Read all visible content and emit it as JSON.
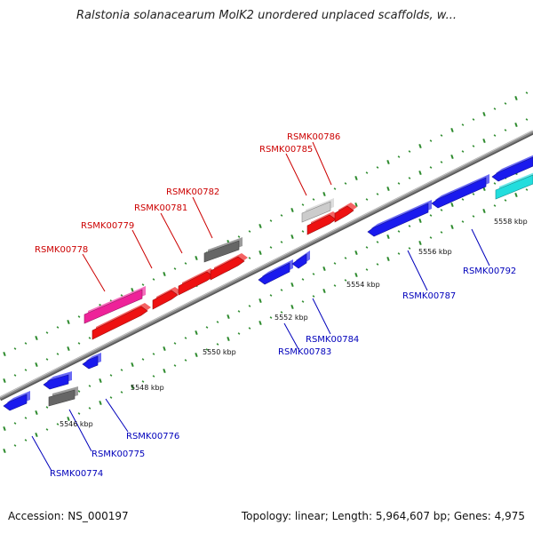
{
  "title": "Ralstonia solanacearum MolK2 unordered unplaced scaffolds, w...",
  "footer": {
    "accession": "Accession: NS_000197",
    "stats": "Topology: linear; Length: 5,964,607 bp; Genes: 4,975"
  },
  "colors": {
    "backbone": "#8a8a8a",
    "tick_dot": "#2e8b2e",
    "forward_label": "#cc0000",
    "reverse_label": "#0000bb",
    "blue": "#1a1aee",
    "red": "#ee1111",
    "magenta": "#ee2299",
    "gray": "#666666",
    "lightgray": "#cccccc",
    "cyan": "#22dddd"
  },
  "positions": [
    {
      "label": "5546 kbp"
    },
    {
      "label": "5548 kbp"
    },
    {
      "label": "5550 kbp"
    },
    {
      "label": "5552 kbp"
    },
    {
      "label": "5554 kbp"
    },
    {
      "label": "5556 kbp"
    },
    {
      "label": "5558 kbp"
    }
  ],
  "genes": [
    {
      "id": "g1",
      "color": "blue"
    },
    {
      "id": "g2",
      "color": "blue"
    },
    {
      "id": "g3",
      "color": "gray"
    },
    {
      "id": "g4",
      "color": "blue"
    },
    {
      "id": "g5",
      "color": "magenta"
    },
    {
      "id": "g6",
      "color": "red"
    },
    {
      "id": "g7",
      "color": "red"
    },
    {
      "id": "g8",
      "color": "red"
    },
    {
      "id": "g9",
      "color": "red"
    },
    {
      "id": "g10",
      "color": "gray"
    },
    {
      "id": "g11",
      "color": "blue"
    },
    {
      "id": "g12",
      "color": "blue"
    },
    {
      "id": "g13",
      "color": "lightgray"
    },
    {
      "id": "g14",
      "color": "red"
    },
    {
      "id": "g15",
      "color": "red"
    },
    {
      "id": "g16",
      "color": "blue"
    },
    {
      "id": "g17",
      "color": "blue"
    },
    {
      "id": "g18",
      "color": "blue"
    },
    {
      "id": "g19",
      "color": "cyan"
    }
  ],
  "labels": [
    {
      "text": "RSMK00774",
      "strand": "reverse"
    },
    {
      "text": "RSMK00775",
      "strand": "reverse"
    },
    {
      "text": "RSMK00776",
      "strand": "reverse"
    },
    {
      "text": "RSMK00783",
      "strand": "reverse"
    },
    {
      "text": "RSMK00784",
      "strand": "reverse"
    },
    {
      "text": "RSMK00787",
      "strand": "reverse"
    },
    {
      "text": "RSMK00792",
      "strand": "reverse"
    },
    {
      "text": "RSMK00778",
      "strand": "forward"
    },
    {
      "text": "RSMK00779",
      "strand": "forward"
    },
    {
      "text": "RSMK00781",
      "strand": "forward"
    },
    {
      "text": "RSMK00782",
      "strand": "forward"
    },
    {
      "text": "RSMK00785",
      "strand": "forward"
    },
    {
      "text": "RSMK00786",
      "strand": "forward"
    }
  ]
}
